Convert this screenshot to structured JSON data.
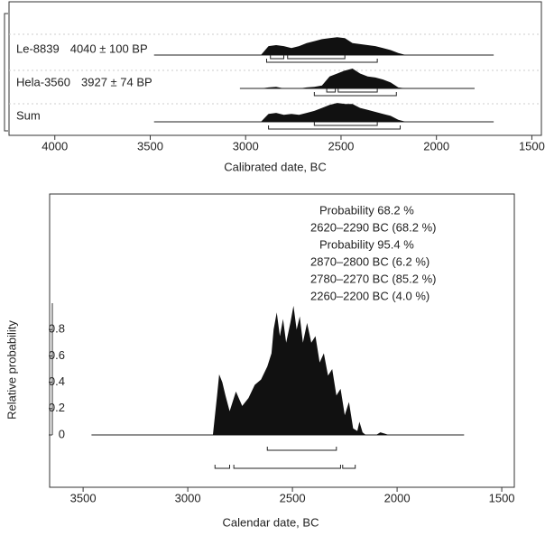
{
  "chart_data": [
    {
      "type": "ridge",
      "xlabel": "Calibrated date, BC",
      "xlim": [
        4240,
        1450
      ],
      "xticks": [
        4000,
        3500,
        3000,
        2500,
        2000,
        1500
      ],
      "x": [
        2920,
        2880,
        2840,
        2800,
        2760,
        2720,
        2680,
        2640,
        2600,
        2560,
        2520,
        2480,
        2440,
        2400,
        2360,
        2320,
        2280,
        2240,
        2200,
        2160
      ],
      "color": "#111111",
      "series": [
        {
          "name": "Le-8839",
          "date": "4040 ± 100  BP",
          "span": [
            3480,
            1700
          ],
          "values": [
            0,
            0.45,
            0.5,
            0.45,
            0.35,
            0.45,
            0.6,
            0.7,
            0.8,
            0.85,
            0.9,
            0.85,
            0.6,
            0.55,
            0.5,
            0.45,
            0.35,
            0.25,
            0.1,
            0
          ],
          "range_68": [
            {
              "from": 2870,
              "to": 2800
            },
            {
              "from": 2780,
              "to": 2480
            }
          ],
          "range_95": [
            {
              "from": 2890,
              "to": 2310
            }
          ]
        },
        {
          "name": "Hela-3560",
          "date": "3927 ± 74  BP",
          "span": [
            3030,
            1800
          ],
          "values": [
            0,
            0.05,
            0.08,
            0,
            0,
            0,
            0.05,
            0.08,
            0.15,
            0.6,
            0.75,
            0.9,
            1.0,
            0.75,
            0.6,
            0.55,
            0.45,
            0.3,
            0.05,
            0
          ],
          "range_68": [
            {
              "from": 2575,
              "to": 2530
            },
            {
              "from": 2515,
              "to": 2310
            }
          ],
          "range_95": [
            {
              "from": 2640,
              "to": 2210
            }
          ]
        },
        {
          "name": "Sum",
          "span": [
            3480,
            1700
          ],
          "values": [
            0,
            0.4,
            0.45,
            0.35,
            0.4,
            0.35,
            0.45,
            0.55,
            0.7,
            0.85,
            0.95,
            0.9,
            0.9,
            0.7,
            0.6,
            0.5,
            0.4,
            0.3,
            0.1,
            0
          ],
          "range_68": [
            {
              "from": 2640,
              "to": 2310
            }
          ],
          "range_95": [
            {
              "from": 2880,
              "to": 2190
            }
          ]
        }
      ]
    },
    {
      "type": "area",
      "xlabel": "Calendar date, BC",
      "ylabel": "Relative probability",
      "xlim": [
        3660,
        1440
      ],
      "ylim": [
        0,
        1
      ],
      "xticks": [
        3500,
        3000,
        2500,
        2000,
        1500
      ],
      "yticks": [
        0,
        0.2,
        0.4,
        0.6,
        0.8
      ],
      "color": "#111111",
      "span": [
        3460,
        1680
      ],
      "x": [
        2880,
        2860,
        2850,
        2835,
        2820,
        2800,
        2770,
        2740,
        2710,
        2680,
        2650,
        2620,
        2600,
        2590,
        2575,
        2560,
        2545,
        2530,
        2510,
        2495,
        2480,
        2465,
        2450,
        2430,
        2410,
        2390,
        2370,
        2350,
        2330,
        2310,
        2290,
        2270,
        2250,
        2230,
        2210,
        2190,
        2180,
        2165,
        2150,
        2100,
        2080,
        2060,
        2040
      ],
      "values": [
        0,
        0.3,
        0.46,
        0.4,
        0.3,
        0.18,
        0.33,
        0.22,
        0.28,
        0.38,
        0.42,
        0.52,
        0.62,
        0.8,
        0.93,
        0.75,
        0.88,
        0.7,
        0.85,
        0.98,
        0.8,
        0.9,
        0.7,
        0.85,
        0.7,
        0.75,
        0.55,
        0.62,
        0.45,
        0.5,
        0.3,
        0.35,
        0.15,
        0.25,
        0.05,
        0.03,
        0.1,
        0.02,
        0,
        0,
        0.02,
        0.01,
        0
      ],
      "intervals": [
        {
          "name": "Probability 68.2 %",
          "ranges": [
            {
              "from": 2620,
              "to": 2290,
              "label": "2620–2290 BC (68.2 %)"
            }
          ]
        },
        {
          "name": "Probability 95.4 %",
          "ranges": [
            {
              "from": 2870,
              "to": 2800,
              "label": "2870–2800 BC (6.2 %)"
            },
            {
              "from": 2780,
              "to": 2270,
              "label": "2780–2270 BC (85.2 %)"
            },
            {
              "from": 2260,
              "to": 2200,
              "label": "2260–2200 BC (4.0 %)"
            }
          ]
        }
      ]
    }
  ]
}
